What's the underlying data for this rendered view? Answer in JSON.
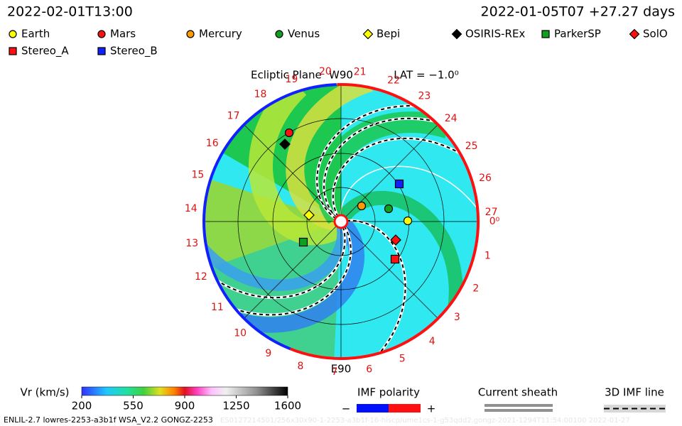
{
  "header": {
    "time": "2022-02-01T13:00",
    "run": "2022-01-05T07 +27.27 days"
  },
  "legend": [
    "Earth",
    "Mars",
    "Mercury",
    "Venus",
    "Bepi",
    "OSIRIS-REx",
    "ParkerSP",
    "SolO",
    "Stereo_A",
    "Stereo_B"
  ],
  "plot": {
    "title": "Ecliptic Plane",
    "top": "W90",
    "bottom": "E90",
    "lat": "LAT = −1.0⁰",
    "ring_labels": [
      "0⁰",
      "1",
      "2",
      "3",
      "4",
      "5",
      "6",
      "7",
      "8",
      "9",
      "10",
      "11",
      "12",
      "13",
      "14",
      "15",
      "16",
      "17",
      "18",
      "19",
      "20",
      "21",
      "22",
      "23",
      "24",
      "25",
      "26",
      "27"
    ]
  },
  "colorbar": {
    "label": "Vr (km/s)",
    "ticks": [
      200,
      550,
      900,
      1250,
      1600
    ]
  },
  "imf": {
    "title": "IMF polarity",
    "minus": "−",
    "plus": "+"
  },
  "sheath": "Current sheath",
  "imf_line": "3D IMF line",
  "footer": {
    "left": "ENLIL-2.7 lowres-2253-a3b1f WSA_V2.2 GONGZ-2253",
    "right": "ES0127214501/256x30x90-1-2253-a3b1f-16-hiscp/ume1cs-1-g53qdd2.gongz-2021-1294T11:54:00100    2022-01-27"
  }
}
